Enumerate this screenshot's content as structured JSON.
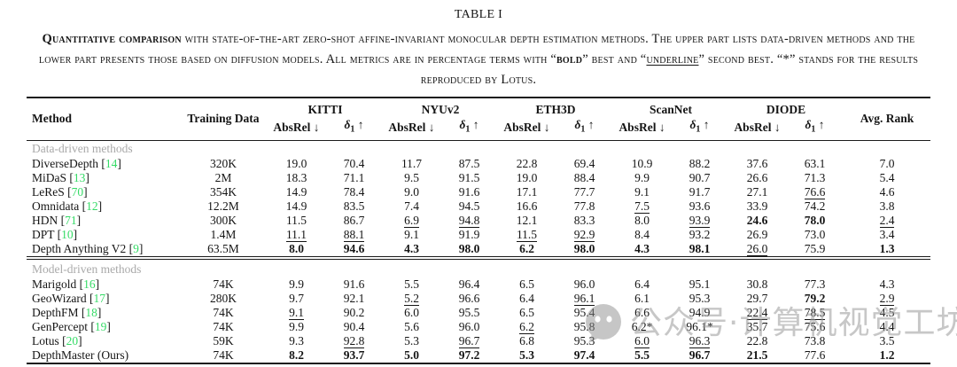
{
  "caption": {
    "label": "TABLE I",
    "segments": [
      {
        "t": "Quantitative comparison",
        "b": true
      },
      {
        "t": " with state-of-the-art zero-shot affine-invariant monocular depth estimation methods. The upper part lists data-driven methods and the lower part presents those based on diffusion models. All metrics are in percentage terms with “"
      },
      {
        "t": "bold",
        "b": true
      },
      {
        "t": "” best and “"
      },
      {
        "t": "underline",
        "u": true
      },
      {
        "t": "” second best. “*” stands for the results reproduced by Lotus."
      }
    ]
  },
  "table": {
    "header": {
      "method": "Method",
      "training": "Training Data",
      "datasets": [
        "KITTI",
        "NYUv2",
        "ETH3D",
        "ScanNet",
        "DIODE"
      ],
      "metric_absrel": "AbsRel",
      "arrow_down": "↓",
      "metric_delta": "δ",
      "delta_sub": "1",
      "arrow_up": "↑",
      "rank": "Avg. Rank"
    },
    "sections": [
      {
        "label": "Data-driven methods",
        "rows": [
          {
            "method": "DiverseDepth",
            "cite": "14",
            "training": "320K",
            "cells": [
              {
                "v": "19.0"
              },
              {
                "v": "70.4"
              },
              {
                "v": "11.7"
              },
              {
                "v": "87.5"
              },
              {
                "v": "22.8"
              },
              {
                "v": "69.4"
              },
              {
                "v": "10.9"
              },
              {
                "v": "88.2"
              },
              {
                "v": "37.6"
              },
              {
                "v": "63.1"
              },
              {
                "v": "7.0"
              }
            ]
          },
          {
            "method": "MiDaS",
            "cite": "13",
            "training": "2M",
            "cells": [
              {
                "v": "18.3"
              },
              {
                "v": "71.1"
              },
              {
                "v": "9.5"
              },
              {
                "v": "91.5"
              },
              {
                "v": "19.0"
              },
              {
                "v": "88.4"
              },
              {
                "v": "9.9"
              },
              {
                "v": "90.7"
              },
              {
                "v": "26.6"
              },
              {
                "v": "71.3"
              },
              {
                "v": "5.4"
              }
            ]
          },
          {
            "method": "LeReS",
            "cite": "70",
            "training": "354K",
            "cells": [
              {
                "v": "14.9"
              },
              {
                "v": "78.4"
              },
              {
                "v": "9.0"
              },
              {
                "v": "91.6"
              },
              {
                "v": "17.1"
              },
              {
                "v": "77.7"
              },
              {
                "v": "9.1"
              },
              {
                "v": "91.7"
              },
              {
                "v": "27.1"
              },
              {
                "v": "76.6",
                "f": "u"
              },
              {
                "v": "4.6"
              }
            ]
          },
          {
            "method": "Omnidata",
            "cite": "12",
            "training": "12.2M",
            "cells": [
              {
                "v": "14.9"
              },
              {
                "v": "83.5"
              },
              {
                "v": "7.4"
              },
              {
                "v": "94.5"
              },
              {
                "v": "16.6"
              },
              {
                "v": "77.8"
              },
              {
                "v": "7.5",
                "f": "u"
              },
              {
                "v": "93.6"
              },
              {
                "v": "33.9"
              },
              {
                "v": "74.2"
              },
              {
                "v": "3.8"
              }
            ]
          },
          {
            "method": "HDN",
            "cite": "71",
            "training": "300K",
            "cells": [
              {
                "v": "11.5"
              },
              {
                "v": "86.7"
              },
              {
                "v": "6.9",
                "f": "u"
              },
              {
                "v": "94.8",
                "f": "u"
              },
              {
                "v": "12.1"
              },
              {
                "v": "83.3"
              },
              {
                "v": "8.0"
              },
              {
                "v": "93.9",
                "f": "u"
              },
              {
                "v": "24.6",
                "f": "b"
              },
              {
                "v": "78.0",
                "f": "b"
              },
              {
                "v": "2.4",
                "f": "u"
              }
            ]
          },
          {
            "method": "DPT",
            "cite": "10",
            "training": "1.4M",
            "cells": [
              {
                "v": "11.1",
                "f": "u"
              },
              {
                "v": "88.1",
                "f": "u"
              },
              {
                "v": "9.1"
              },
              {
                "v": "91.9"
              },
              {
                "v": "11.5",
                "f": "u"
              },
              {
                "v": "92.9",
                "f": "u"
              },
              {
                "v": "8.4"
              },
              {
                "v": "93.2"
              },
              {
                "v": "26.9"
              },
              {
                "v": "73.0"
              },
              {
                "v": "3.4"
              }
            ]
          },
          {
            "method": "Depth Anything V2",
            "cite": "9",
            "training": "63.5M",
            "cells": [
              {
                "v": "8.0",
                "f": "b"
              },
              {
                "v": "94.6",
                "f": "b"
              },
              {
                "v": "4.3",
                "f": "b"
              },
              {
                "v": "98.0",
                "f": "b"
              },
              {
                "v": "6.2",
                "f": "b"
              },
              {
                "v": "98.0",
                "f": "b"
              },
              {
                "v": "4.3",
                "f": "b"
              },
              {
                "v": "98.1",
                "f": "b"
              },
              {
                "v": "26.0",
                "f": "u"
              },
              {
                "v": "75.9"
              },
              {
                "v": "1.3",
                "f": "b"
              }
            ]
          }
        ]
      },
      {
        "label": "Model-driven methods",
        "rows": [
          {
            "method": "Marigold",
            "cite": "16",
            "training": "74K",
            "cells": [
              {
                "v": "9.9"
              },
              {
                "v": "91.6"
              },
              {
                "v": "5.5"
              },
              {
                "v": "96.4"
              },
              {
                "v": "6.5"
              },
              {
                "v": "96.0"
              },
              {
                "v": "6.4"
              },
              {
                "v": "95.1"
              },
              {
                "v": "30.8"
              },
              {
                "v": "77.3"
              },
              {
                "v": "4.3"
              }
            ]
          },
          {
            "method": "GeoWizard",
            "cite": "17",
            "training": "280K",
            "cells": [
              {
                "v": "9.7"
              },
              {
                "v": "92.1"
              },
              {
                "v": "5.2",
                "f": "u"
              },
              {
                "v": "96.6"
              },
              {
                "v": "6.4"
              },
              {
                "v": "96.1",
                "f": "u"
              },
              {
                "v": "6.1"
              },
              {
                "v": "95.3"
              },
              {
                "v": "29.7"
              },
              {
                "v": "79.2",
                "f": "b"
              },
              {
                "v": "2.9",
                "f": "u"
              }
            ]
          },
          {
            "method": "DepthFM",
            "cite": "18",
            "training": "74K",
            "cells": [
              {
                "v": "9.1",
                "f": "u"
              },
              {
                "v": "90.2"
              },
              {
                "v": "6.0"
              },
              {
                "v": "95.5"
              },
              {
                "v": "6.5"
              },
              {
                "v": "95.4"
              },
              {
                "v": "6.6"
              },
              {
                "v": "94.9"
              },
              {
                "v": "22.4",
                "f": "u"
              },
              {
                "v": "78.5",
                "f": "u"
              },
              {
                "v": "4.5"
              }
            ]
          },
          {
            "method": "GenPercept",
            "cite": "19",
            "training": "74K",
            "cells": [
              {
                "v": "9.9"
              },
              {
                "v": "90.4"
              },
              {
                "v": "5.6"
              },
              {
                "v": "96.0"
              },
              {
                "v": "6.2",
                "f": "u"
              },
              {
                "v": "95.8"
              },
              {
                "v": "6.2*"
              },
              {
                "v": "96.1*"
              },
              {
                "v": "35.7"
              },
              {
                "v": "75.6"
              },
              {
                "v": "4.4"
              }
            ]
          },
          {
            "method": "Lotus",
            "cite": "20",
            "training": "59K",
            "cells": [
              {
                "v": "9.3"
              },
              {
                "v": "92.8",
                "f": "u"
              },
              {
                "v": "5.3"
              },
              {
                "v": "96.7",
                "f": "u"
              },
              {
                "v": "6.8"
              },
              {
                "v": "95.3"
              },
              {
                "v": "6.0",
                "f": "u"
              },
              {
                "v": "96.3",
                "f": "u"
              },
              {
                "v": "22.8"
              },
              {
                "v": "73.8"
              },
              {
                "v": "3.5"
              }
            ]
          },
          {
            "method": "DepthMaster (Ours)",
            "cite": "",
            "training": "74K",
            "cells": [
              {
                "v": "8.2",
                "f": "b"
              },
              {
                "v": "93.7",
                "f": "b"
              },
              {
                "v": "5.0",
                "f": "b"
              },
              {
                "v": "97.2",
                "f": "b"
              },
              {
                "v": "5.3",
                "f": "b"
              },
              {
                "v": "97.4",
                "f": "b"
              },
              {
                "v": "5.5",
                "f": "b"
              },
              {
                "v": "96.7",
                "f": "b"
              },
              {
                "v": "21.5",
                "f": "b"
              },
              {
                "v": "77.6"
              },
              {
                "v": "1.2",
                "f": "b"
              }
            ]
          }
        ]
      }
    ]
  },
  "watermark": {
    "text": "公众号·计算机视觉工坊"
  },
  "colors": {
    "citation": "#35db66",
    "section_label": "#a9a9a9",
    "rule": "#1b1b1b",
    "watermark": "#9a9a9a"
  }
}
